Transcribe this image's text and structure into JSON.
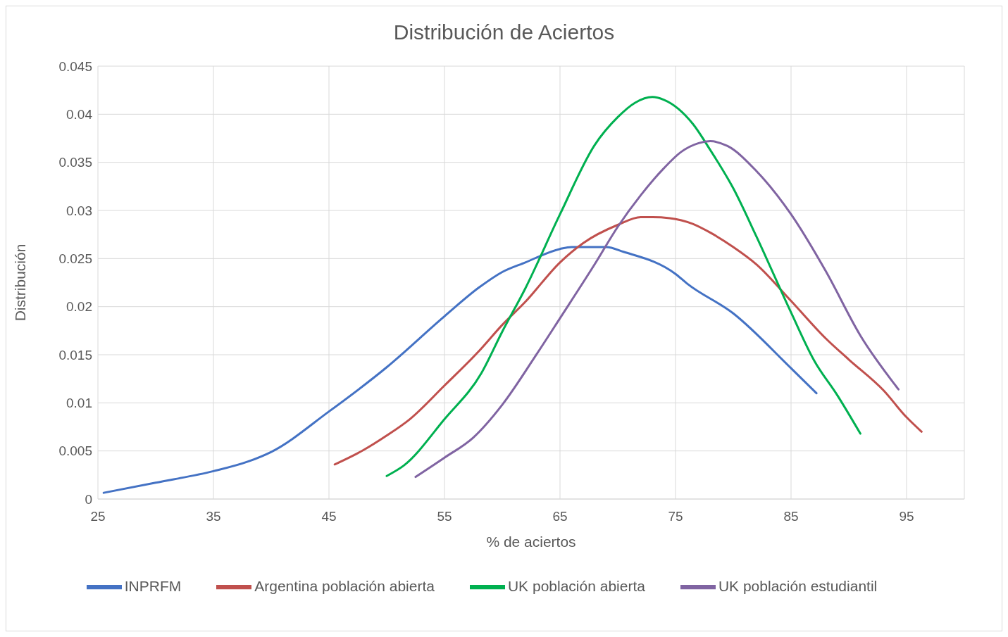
{
  "chart_data": {
    "type": "line",
    "title": "Distribución de Aciertos",
    "xlabel": "% de aciertos",
    "ylabel": "Distribución",
    "xlim": [
      25,
      100
    ],
    "xticks": [
      25,
      35,
      45,
      55,
      65,
      75,
      85,
      95
    ],
    "ylim": [
      0,
      0.045
    ],
    "yticks": [
      0,
      0.005,
      0.01,
      0.015,
      0.02,
      0.025,
      0.03,
      0.035,
      0.04,
      0.045
    ],
    "grid": true,
    "legend": "bottom",
    "marker": "none",
    "line_style": "solid",
    "series": [
      {
        "name": "INPRFM",
        "color": "#4472c4",
        "x": [
          25.5,
          30,
          35,
          38,
          40,
          45,
          50,
          55,
          58,
          60,
          62,
          65,
          66,
          69,
          70.5,
          75,
          76,
          80,
          85,
          87.2
        ],
        "values": [
          0.00065,
          0.0017,
          0.0029,
          0.0039,
          0.0049,
          0.0091,
          0.0137,
          0.019,
          0.022,
          0.0236,
          0.0246,
          0.026,
          0.0262,
          0.0262,
          0.0257,
          0.0234,
          0.0224,
          0.0193,
          0.0136,
          0.011
        ]
      },
      {
        "name": "Argentina población abierta",
        "color": "#c0504d",
        "x": [
          45.5,
          48,
          50,
          52,
          55,
          58,
          60,
          62,
          65,
          67,
          70,
          72,
          73,
          74.5,
          76.5,
          78,
          80,
          82,
          85,
          88,
          90,
          93,
          95,
          96.3
        ],
        "values": [
          0.0036,
          0.0051,
          0.0066,
          0.0083,
          0.0118,
          0.0154,
          0.0181,
          0.0205,
          0.0246,
          0.0266,
          0.0285,
          0.0293,
          0.0293,
          0.0292,
          0.0286,
          0.0277,
          0.0262,
          0.0244,
          0.0206,
          0.0167,
          0.0145,
          0.0113,
          0.0085,
          0.007
        ]
      },
      {
        "name": "UK población abierta",
        "color": "#00b050",
        "x": [
          50,
          51.5,
          55,
          58.2,
          60,
          62,
          65,
          68,
          70,
          71.5,
          73,
          74,
          76.5,
          78,
          80,
          82,
          85,
          87,
          89,
          91
        ],
        "values": [
          0.0024,
          0.0035,
          0.0083,
          0.0131,
          0.0174,
          0.0219,
          0.0296,
          0.0368,
          0.0397,
          0.0412,
          0.0418,
          0.0415,
          0.039,
          0.0363,
          0.0323,
          0.0273,
          0.0194,
          0.0144,
          0.0108,
          0.0068
        ]
      },
      {
        "name": "UK población estudiantil",
        "color": "#8064a2",
        "x": [
          52.5,
          55,
          57.5,
          60,
          63,
          65,
          68,
          70,
          72,
          74,
          75.5,
          77,
          78,
          79.5,
          82,
          85,
          88,
          91,
          94.3
        ],
        "values": [
          0.0023,
          0.0043,
          0.0064,
          0.0098,
          0.0151,
          0.0188,
          0.0244,
          0.0283,
          0.0316,
          0.0344,
          0.0361,
          0.037,
          0.0372,
          0.0367,
          0.0341,
          0.0296,
          0.0237,
          0.017,
          0.0114
        ]
      }
    ]
  }
}
